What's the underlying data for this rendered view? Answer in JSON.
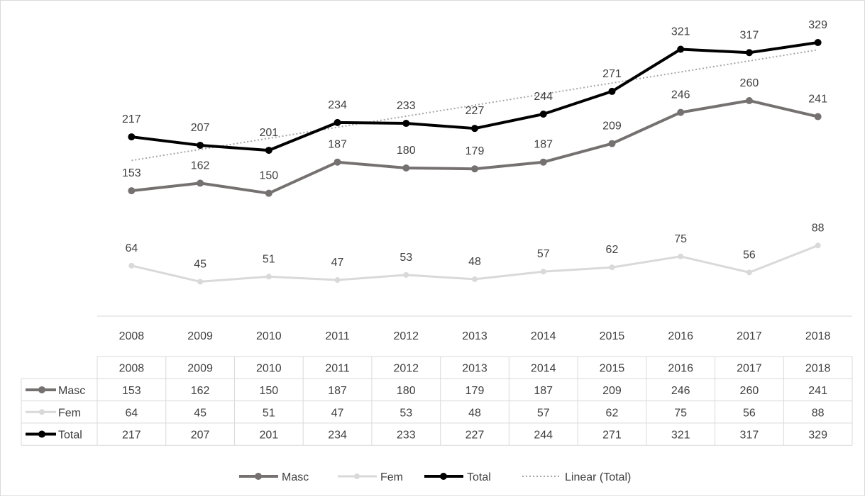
{
  "chart_data": {
    "type": "line",
    "categories": [
      "2008",
      "2009",
      "2010",
      "2011",
      "2012",
      "2013",
      "2014",
      "2015",
      "2016",
      "2017",
      "2018"
    ],
    "series": [
      {
        "name": "Masc",
        "values": [
          153,
          162,
          150,
          187,
          180,
          179,
          187,
          209,
          246,
          260,
          241
        ],
        "color": "#767171"
      },
      {
        "name": "Fem",
        "values": [
          64,
          45,
          51,
          47,
          53,
          48,
          57,
          62,
          75,
          56,
          88
        ],
        "color": "#d9d9d9"
      },
      {
        "name": "Total",
        "values": [
          217,
          207,
          201,
          234,
          233,
          227,
          244,
          271,
          321,
          317,
          329
        ],
        "color": "#000000"
      }
    ],
    "trendline": {
      "name": "Linear (Total)",
      "of": "Total",
      "kind": "linear",
      "color": "#a6a6a6"
    },
    "data_labels": true,
    "data_table": true,
    "grid": false,
    "legend_position": "bottom",
    "title": "",
    "xlabel": "",
    "ylabel": ""
  }
}
